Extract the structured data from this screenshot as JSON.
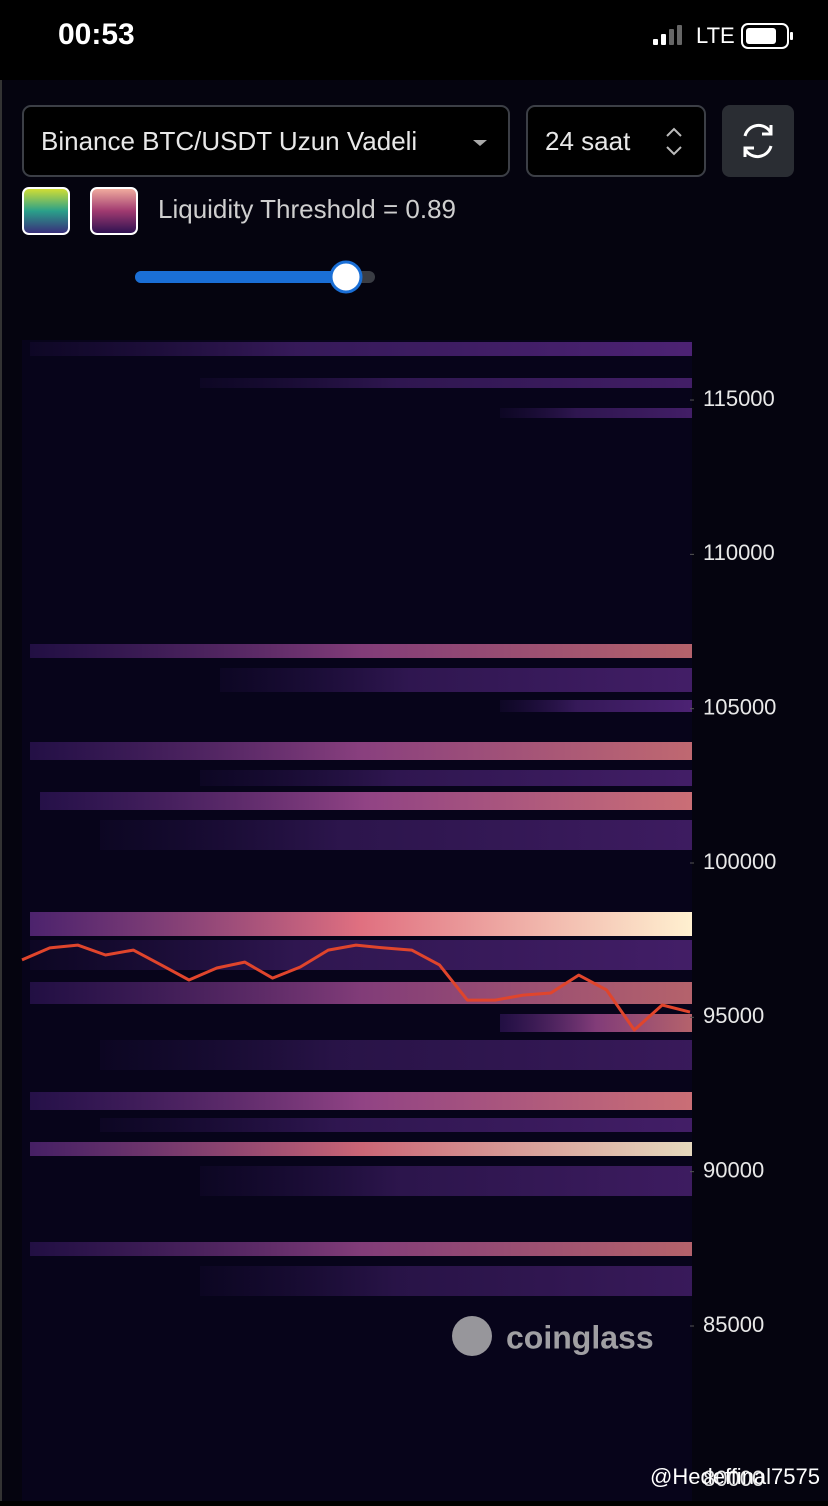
{
  "status_bar": {
    "time": "00:53",
    "network": "LTE"
  },
  "controls": {
    "pair": "Binance BTC/USDT Uzun Vadeli",
    "range": "24 saat",
    "threshold_label": "Liquidity Threshold = 0.89"
  },
  "chart_data": {
    "type": "line",
    "color": "#e0452c",
    "values": [
      96860,
      97250,
      97340,
      97020,
      97180,
      96700,
      96210,
      96600,
      96790,
      96270,
      96630,
      97180,
      97340,
      97250,
      97180,
      96700,
      95560,
      95560,
      95720,
      95790,
      96370,
      95890,
      94590,
      95400,
      95170
    ],
    "ylim": [
      79330,
      116945
    ],
    "yticks": [
      80000,
      85000,
      90000,
      95000,
      100000,
      105000,
      110000,
      115000
    ]
  },
  "watermark": "coinglass",
  "credit": "@Hedeffinal7575"
}
